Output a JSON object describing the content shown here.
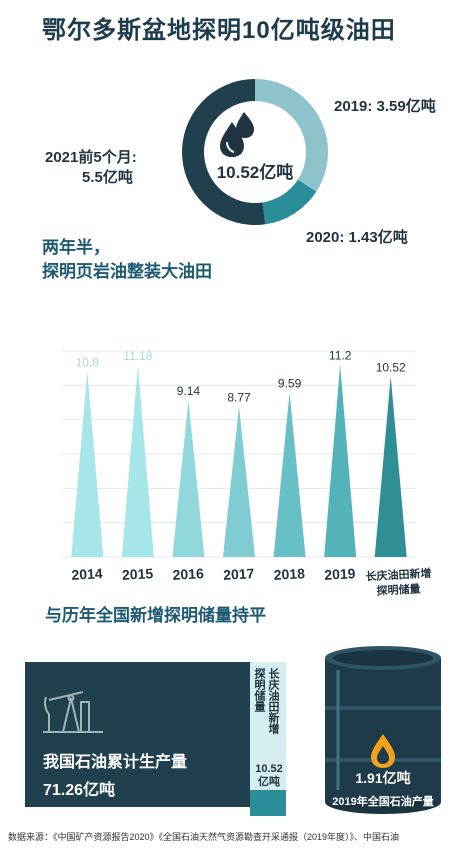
{
  "title": "鄂尔多斯盆地探明10亿吨级油田",
  "donut": {
    "center_label": "10.52亿吨",
    "segments": [
      {
        "label_line1": "2019: 3.59亿吨",
        "label_line2": "",
        "value": 3.59,
        "color": "#8fc3cc"
      },
      {
        "label_line1": "2020: 1.43亿吨",
        "label_line2": "",
        "value": 1.43,
        "color": "#2a8e9a"
      },
      {
        "label_line1": "2021前5个月:",
        "label_line2": "5.5亿吨",
        "value": 5.5,
        "color": "#21404e"
      }
    ],
    "icon": "oil-drops-icon"
  },
  "section1": {
    "line1": "两年半，",
    "line2": "探明页岩油整装大油田"
  },
  "chart_data": {
    "type": "bar",
    "categories": [
      "2014",
      "2015",
      "2016",
      "2017",
      "2018",
      "2019",
      "长庆油田新增探明储量"
    ],
    "category_lines": [
      [
        "2014"
      ],
      [
        "2015"
      ],
      [
        "2016"
      ],
      [
        "2017"
      ],
      [
        "2018"
      ],
      [
        "2019"
      ],
      [
        "长庆油田新增",
        "探明储量"
      ]
    ],
    "values": [
      10.8,
      11.18,
      9.14,
      8.77,
      9.59,
      11.2,
      10.52
    ],
    "value_labels": [
      "10.8",
      "11.18",
      "9.14",
      "8.77",
      "9.59",
      "11.2",
      "10.52"
    ],
    "colors": [
      "#a6e6e8",
      "#a6e6e8",
      "#90d8dc",
      "#7fcdd2",
      "#66c0c5",
      "#53b3b8",
      "#2f8f95"
    ],
    "ylim": [
      0,
      12
    ],
    "grid": true,
    "bar_shape": "triangle"
  },
  "section2": {
    "text": "与历年全国新增探明储量持平"
  },
  "bottom": {
    "box_label": "我国石油累计生产量",
    "box_value": "71.26亿吨",
    "col1": "探明储量",
    "col2": "长庆油田新增",
    "col2_value_line1": "10.52",
    "col2_value_line2": "亿吨",
    "barrel_value": "1.91亿吨",
    "barrel_caption": "2019年全国石油产量",
    "icons": [
      "oil-pump-icon",
      "oil-drop-icon"
    ]
  },
  "footer": "数据来源：《中国矿产资源报告2020》《全国石油天然气资源勘查开采通报（2019年度）》、中国石油"
}
